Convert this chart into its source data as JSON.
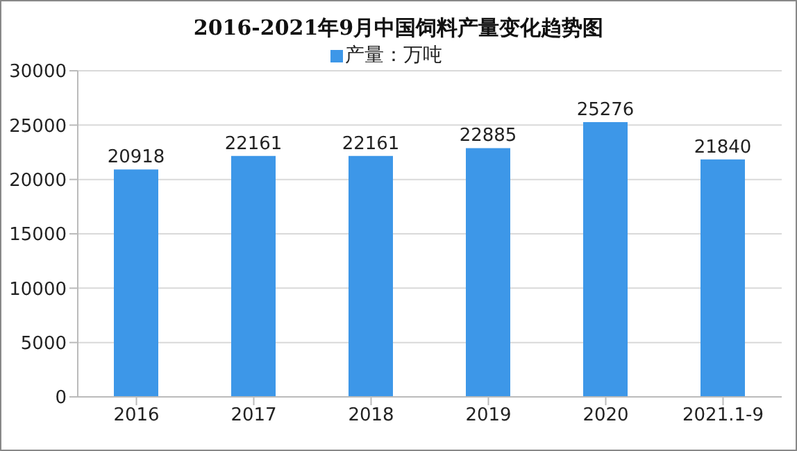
{
  "chart_data": {
    "type": "bar",
    "title": "2016-2021年9月中国饲料产量变化趋势图",
    "categories": [
      "2016",
      "2017",
      "2018",
      "2019",
      "2020",
      "2021.1-9"
    ],
    "series": [
      {
        "name": "产量：万吨",
        "color": "#3d97e8",
        "values": [
          20918,
          22161,
          22161,
          22885,
          25276,
          21840
        ]
      }
    ],
    "ylim": [
      0,
      30000
    ],
    "yticks": [
      0,
      5000,
      10000,
      15000,
      20000,
      25000,
      30000
    ],
    "grid": "y",
    "legend": "top",
    "data_labels": true
  }
}
